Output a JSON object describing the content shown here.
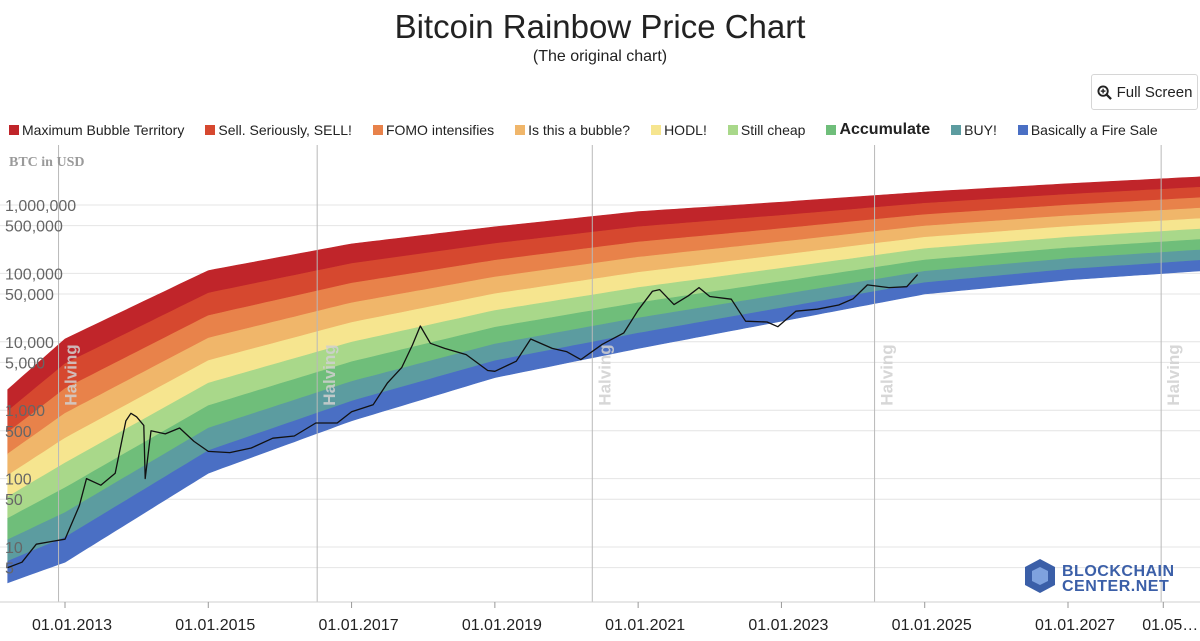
{
  "header": {
    "title": "Bitcoin Rainbow Price Chart",
    "subtitle": "(The original chart)",
    "fullscreen_label": "Full Screen"
  },
  "chart_data": {
    "type": "area",
    "title": "Bitcoin Rainbow Price Chart",
    "subtitle": "(The original chart)",
    "ylabel": "BTC in USD",
    "y_scale": "log",
    "xlim": [
      "2012-01-01",
      "2028-12-01"
    ],
    "ylim": [
      1,
      4000000
    ],
    "ytick_labels": [
      "1,000,000",
      "500,000",
      "100,000",
      "50,000",
      "10,000",
      "5,000",
      "1,000",
      "500",
      "100",
      "50",
      "10",
      "5"
    ],
    "ytick_values": [
      1000000,
      500000,
      100000,
      50000,
      10000,
      5000,
      1000,
      500,
      100,
      50,
      10,
      5
    ],
    "xtick_labels": [
      "01.01.2013",
      "01.01.2015",
      "01.01.2017",
      "01.01.2019",
      "01.01.2021",
      "01.01.2023",
      "01.01.2025",
      "01.01.2027",
      "01.05…"
    ],
    "xtick_values": [
      2013.0,
      2015.0,
      2017.0,
      2019.0,
      2021.0,
      2023.0,
      2025.0,
      2027.0,
      2028.33
    ],
    "halvings": [
      {
        "label": "Halving",
        "date": 2012.91
      },
      {
        "label": "Halving",
        "date": 2016.52
      },
      {
        "label": "Halving",
        "date": 2020.36
      },
      {
        "label": "Halving",
        "date": 2024.3
      },
      {
        "label": "Halving",
        "date": 2028.3
      }
    ],
    "bands": [
      {
        "name": "Maximum Bubble Territory",
        "color": "#c0252a",
        "bold": false
      },
      {
        "name": "Sell. Seriously, SELL!",
        "color": "#d6482f",
        "bold": false
      },
      {
        "name": "FOMO intensifies",
        "color": "#e8824a",
        "bold": false
      },
      {
        "name": "Is this a bubble?",
        "color": "#f0b66a",
        "bold": false
      },
      {
        "name": "HODL!",
        "color": "#f6e58f",
        "bold": false
      },
      {
        "name": "Still cheap",
        "color": "#a9d88a",
        "bold": false
      },
      {
        "name": "Accumulate",
        "color": "#6fbe7a",
        "bold": true
      },
      {
        "name": "BUY!",
        "color": "#5c9ca0",
        "bold": false
      },
      {
        "name": "Basically a Fire Sale",
        "color": "#4a6fc4",
        "bold": false
      }
    ],
    "bands_boundary_price": {
      "years": [
        2012.2,
        2013.0,
        2015.0,
        2017.0,
        2019.0,
        2021.0,
        2023.0,
        2025.0,
        2027.0,
        2028.9
      ],
      "top": [
        2000,
        11000,
        110000,
        270000,
        480000,
        800000,
        1100000,
        1550000,
        2050000,
        2600000
      ],
      "bottom": [
        3,
        6,
        120,
        700,
        3000,
        8000,
        20000,
        50000,
        80000,
        110000
      ]
    },
    "series": [
      {
        "name": "BTC price",
        "years": [
          2012.2,
          2012.4,
          2012.6,
          2012.8,
          2013.0,
          2013.2,
          2013.3,
          2013.5,
          2013.7,
          2013.85,
          2013.92,
          2014.0,
          2014.1,
          2014.12,
          2014.2,
          2014.4,
          2014.6,
          2014.8,
          2015.0,
          2015.3,
          2015.6,
          2015.9,
          2016.2,
          2016.5,
          2016.8,
          2017.0,
          2017.3,
          2017.5,
          2017.7,
          2017.85,
          2017.96,
          2018.1,
          2018.3,
          2018.6,
          2018.9,
          2019.0,
          2019.3,
          2019.5,
          2019.8,
          2020.0,
          2020.2,
          2020.5,
          2020.8,
          2021.0,
          2021.2,
          2021.3,
          2021.5,
          2021.7,
          2021.85,
          2022.0,
          2022.3,
          2022.5,
          2022.8,
          2022.95,
          2023.2,
          2023.5,
          2023.8,
          2024.0,
          2024.2,
          2024.5,
          2024.75,
          2024.9
        ],
        "prices": [
          5,
          6,
          11,
          12,
          13,
          40,
          100,
          80,
          120,
          700,
          900,
          800,
          600,
          100,
          500,
          450,
          550,
          350,
          250,
          240,
          280,
          390,
          420,
          650,
          650,
          950,
          1200,
          2500,
          4200,
          9000,
          17000,
          9500,
          8000,
          6500,
          3800,
          3700,
          5200,
          11000,
          8000,
          7200,
          5500,
          9200,
          13500,
          29000,
          55000,
          58000,
          35000,
          47000,
          62000,
          46000,
          42000,
          20000,
          19500,
          16600,
          28000,
          30000,
          34500,
          42500,
          68000,
          62000,
          64000,
          96000
        ]
      }
    ],
    "watermark": "BLOCKCHAINCENTER.NET"
  }
}
